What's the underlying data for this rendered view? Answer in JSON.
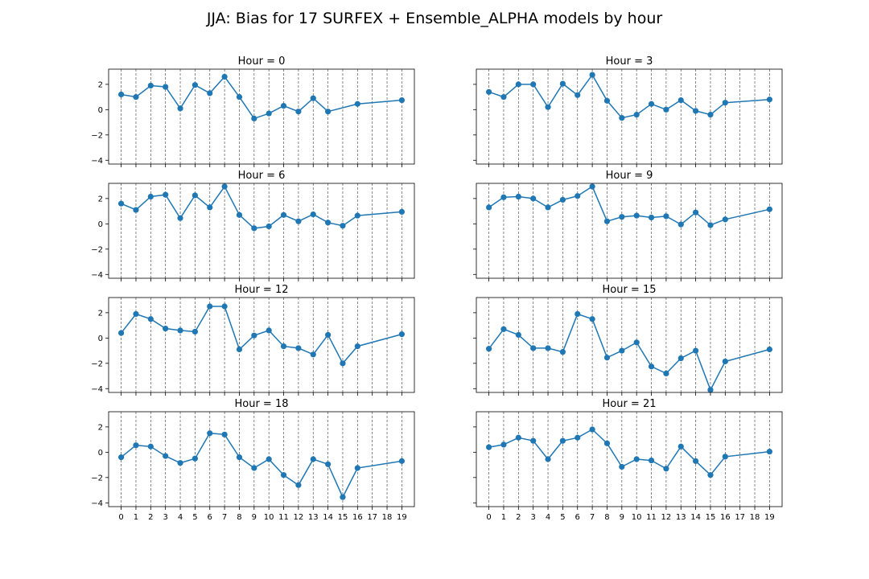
{
  "figure": {
    "title": "JJA: Bias for 17 SURFEX + Ensemble_ALPHA models by hour"
  },
  "chart_data": [
    {
      "type": "line",
      "title": "Hour = 0",
      "x": [
        0,
        1,
        2,
        3,
        4,
        5,
        6,
        7,
        8,
        9,
        10,
        11,
        12,
        13,
        14,
        16,
        19
      ],
      "y": [
        1.2,
        1.0,
        1.9,
        1.8,
        0.1,
        1.95,
        1.3,
        2.6,
        1.0,
        -0.7,
        -0.3,
        0.3,
        -0.15,
        0.9,
        -0.15,
        0.45,
        0.75
      ],
      "xticks": [
        0,
        1,
        2,
        3,
        4,
        5,
        6,
        7,
        8,
        9,
        10,
        11,
        12,
        13,
        14,
        15,
        16,
        17,
        18,
        19
      ],
      "yticks": [
        -4,
        -2,
        0,
        2
      ],
      "ylim": [
        -4.3,
        3.2
      ],
      "grid": "vertical dashed",
      "color": "#1f77b4"
    },
    {
      "type": "line",
      "title": "Hour = 3",
      "x": [
        0,
        1,
        2,
        3,
        4,
        5,
        6,
        7,
        8,
        9,
        10,
        11,
        12,
        13,
        14,
        15,
        16,
        19
      ],
      "y": [
        1.4,
        1.0,
        2.0,
        2.0,
        0.2,
        2.05,
        1.15,
        2.75,
        0.7,
        -0.65,
        -0.4,
        0.45,
        0.0,
        0.75,
        -0.1,
        -0.4,
        0.55,
        0.8
      ],
      "xticks": [
        0,
        1,
        2,
        3,
        4,
        5,
        6,
        7,
        8,
        9,
        10,
        11,
        12,
        13,
        14,
        15,
        16,
        17,
        18,
        19
      ],
      "yticks": [
        -4,
        -2,
        0,
        2
      ],
      "ylim": [
        -4.3,
        3.2
      ],
      "grid": "vertical dashed",
      "color": "#1f77b4"
    },
    {
      "type": "line",
      "title": "Hour = 6",
      "x": [
        0,
        1,
        2,
        3,
        4,
        5,
        6,
        7,
        8,
        9,
        10,
        11,
        12,
        13,
        14,
        15,
        16,
        19
      ],
      "y": [
        1.6,
        1.1,
        2.15,
        2.3,
        0.45,
        2.25,
        1.3,
        2.95,
        0.7,
        -0.35,
        -0.2,
        0.7,
        0.2,
        0.75,
        0.1,
        -0.15,
        0.65,
        0.95
      ],
      "xticks": [
        0,
        1,
        2,
        3,
        4,
        5,
        6,
        7,
        8,
        9,
        10,
        11,
        12,
        13,
        14,
        15,
        16,
        17,
        18,
        19
      ],
      "yticks": [
        -4,
        -2,
        0,
        2
      ],
      "ylim": [
        -4.3,
        3.2
      ],
      "grid": "vertical dashed",
      "color": "#1f77b4"
    },
    {
      "type": "line",
      "title": "Hour = 9",
      "x": [
        0,
        1,
        2,
        3,
        4,
        5,
        6,
        7,
        8,
        9,
        10,
        11,
        12,
        13,
        14,
        15,
        16,
        19
      ],
      "y": [
        1.3,
        2.1,
        2.15,
        2.0,
        1.3,
        1.9,
        2.2,
        2.95,
        0.2,
        0.55,
        0.65,
        0.5,
        0.6,
        -0.05,
        0.9,
        -0.1,
        0.35,
        1.15
      ],
      "xticks": [
        0,
        1,
        2,
        3,
        4,
        5,
        6,
        7,
        8,
        9,
        10,
        11,
        12,
        13,
        14,
        15,
        16,
        17,
        18,
        19
      ],
      "yticks": [
        -4,
        -2,
        0,
        2
      ],
      "ylim": [
        -4.3,
        3.2
      ],
      "grid": "vertical dashed",
      "color": "#1f77b4"
    },
    {
      "type": "line",
      "title": "Hour = 12",
      "x": [
        0,
        1,
        2,
        3,
        4,
        5,
        6,
        7,
        8,
        9,
        10,
        11,
        12,
        13,
        14,
        15,
        16,
        19
      ],
      "y": [
        0.4,
        1.9,
        1.5,
        0.75,
        0.6,
        0.5,
        2.5,
        2.5,
        -0.9,
        0.2,
        0.6,
        -0.65,
        -0.8,
        -1.3,
        0.25,
        -2.0,
        -0.65,
        0.3
      ],
      "xticks": [
        0,
        1,
        2,
        3,
        4,
        5,
        6,
        7,
        8,
        9,
        10,
        11,
        12,
        13,
        14,
        15,
        16,
        17,
        18,
        19
      ],
      "yticks": [
        -4,
        -2,
        0,
        2
      ],
      "ylim": [
        -4.3,
        3.2
      ],
      "grid": "vertical dashed",
      "color": "#1f77b4"
    },
    {
      "type": "line",
      "title": "Hour = 15",
      "x": [
        0,
        1,
        2,
        3,
        4,
        5,
        6,
        7,
        8,
        9,
        10,
        11,
        12,
        13,
        14,
        15,
        16,
        19
      ],
      "y": [
        -0.85,
        0.7,
        0.25,
        -0.8,
        -0.8,
        -1.1,
        1.9,
        1.5,
        -1.55,
        -1.0,
        -0.35,
        -2.25,
        -2.8,
        -1.6,
        -1.0,
        -4.1,
        -1.85,
        -0.9
      ],
      "xticks": [
        0,
        1,
        2,
        3,
        4,
        5,
        6,
        7,
        8,
        9,
        10,
        11,
        12,
        13,
        14,
        15,
        16,
        17,
        18,
        19
      ],
      "yticks": [
        -4,
        -2,
        0,
        2
      ],
      "ylim": [
        -4.3,
        3.2
      ],
      "grid": "vertical dashed",
      "color": "#1f77b4"
    },
    {
      "type": "line",
      "title": "Hour = 18",
      "x": [
        0,
        1,
        2,
        3,
        4,
        5,
        6,
        7,
        8,
        9,
        10,
        11,
        12,
        13,
        14,
        15,
        16,
        19
      ],
      "y": [
        -0.4,
        0.55,
        0.45,
        -0.3,
        -0.85,
        -0.5,
        1.5,
        1.4,
        -0.4,
        -1.25,
        -0.55,
        -1.8,
        -2.6,
        -0.55,
        -0.95,
        -3.55,
        -1.25,
        -0.7
      ],
      "xticks": [
        0,
        1,
        2,
        3,
        4,
        5,
        6,
        7,
        8,
        9,
        10,
        11,
        12,
        13,
        14,
        15,
        16,
        17,
        18,
        19
      ],
      "yticks": [
        -4,
        -2,
        0,
        2
      ],
      "ylim": [
        -4.3,
        3.2
      ],
      "grid": "vertical dashed",
      "color": "#1f77b4"
    },
    {
      "type": "line",
      "title": "Hour = 21",
      "x": [
        0,
        1,
        2,
        3,
        4,
        5,
        6,
        7,
        8,
        9,
        10,
        11,
        12,
        13,
        14,
        15,
        16,
        19
      ],
      "y": [
        0.4,
        0.6,
        1.15,
        0.9,
        -0.55,
        0.9,
        1.15,
        1.8,
        0.7,
        -1.15,
        -0.55,
        -0.65,
        -1.3,
        0.45,
        -0.7,
        -1.8,
        -0.35,
        0.05
      ],
      "xticks": [
        0,
        1,
        2,
        3,
        4,
        5,
        6,
        7,
        8,
        9,
        10,
        11,
        12,
        13,
        14,
        15,
        16,
        17,
        18,
        19
      ],
      "yticks": [
        -4,
        -2,
        0,
        2
      ],
      "ylim": [
        -4.3,
        3.2
      ],
      "grid": "vertical dashed",
      "color": "#1f77b4"
    }
  ]
}
